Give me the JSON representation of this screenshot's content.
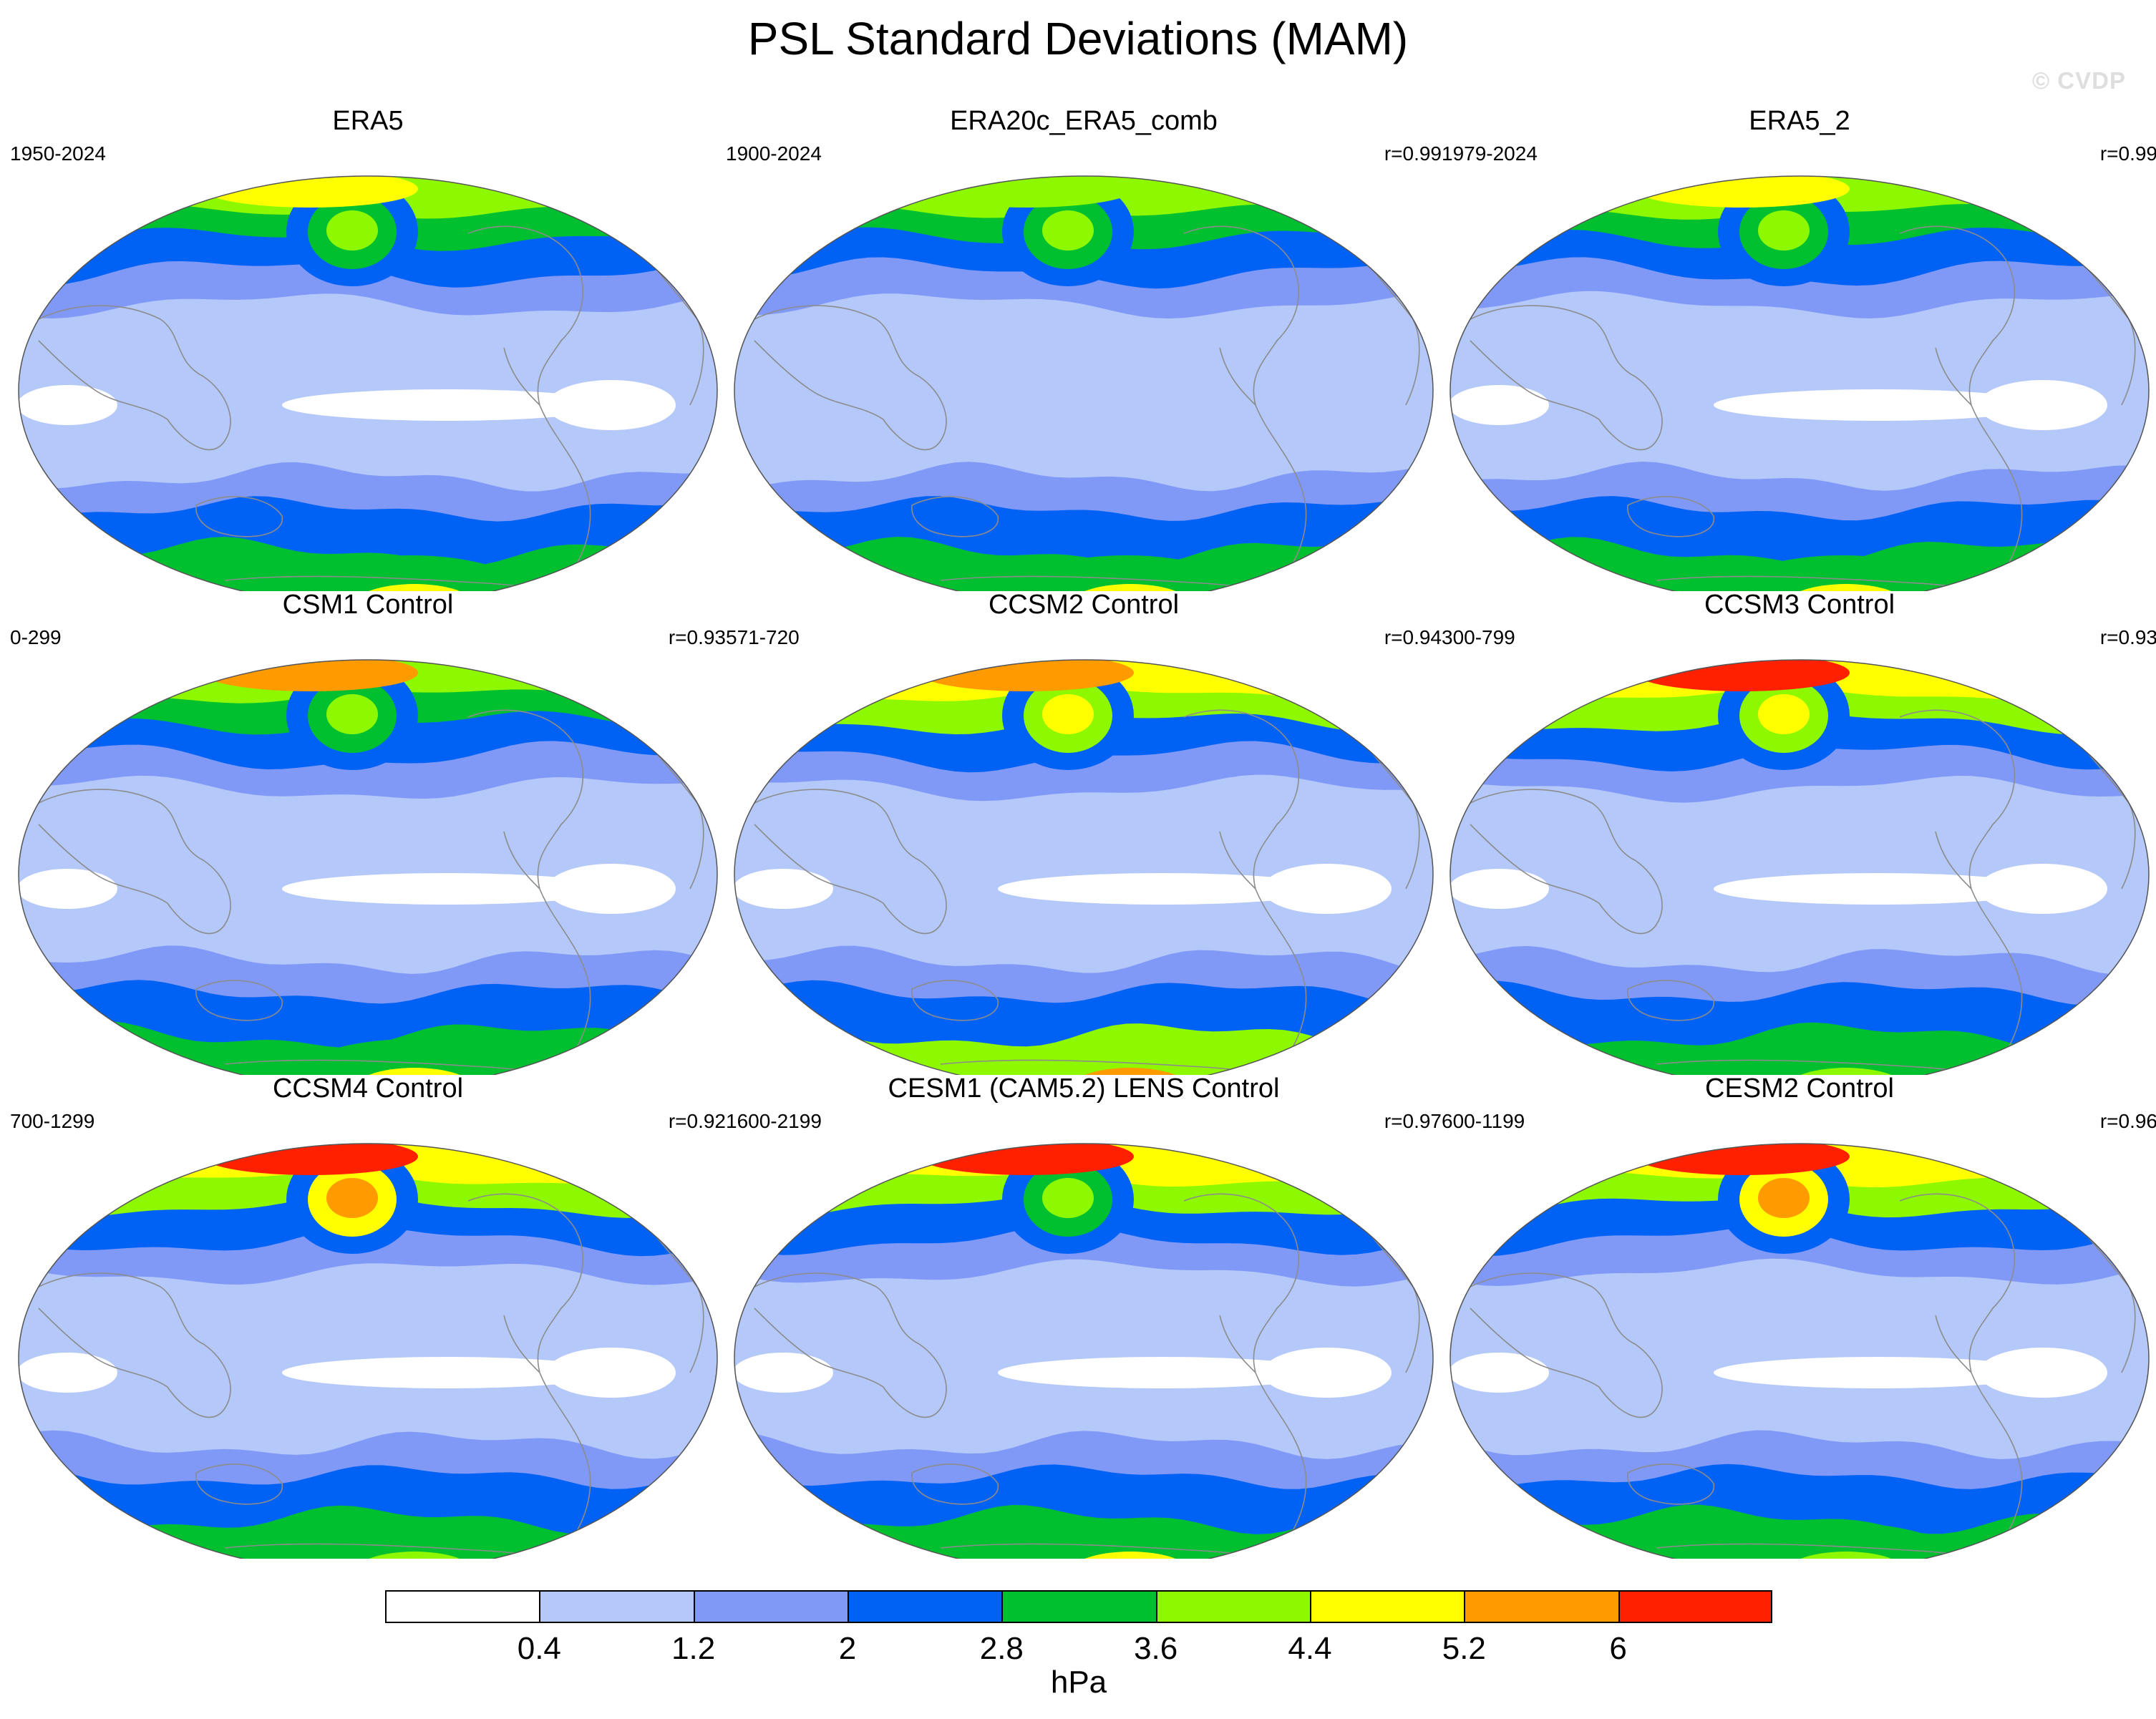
{
  "title": "PSL Standard Deviations (MAM)",
  "watermark": "© CVDP",
  "palette": [
    "#ffffff",
    "#b4c8fa",
    "#8098f6",
    "#0062f4",
    "#00c030",
    "#8ef800",
    "#ffff00",
    "#ff9a00",
    "#ff2000"
  ],
  "coast_color": "#8c8c8c",
  "panels": [
    {
      "title": "ERA5",
      "years": "1950-2024",
      "corr": "",
      "bands": {
        "n_mid": 3,
        "n_mid_lo": 2,
        "n_high": 4,
        "s_mid": 3,
        "s_high": 4,
        "trop_white": 1
      },
      "peaks": {
        "aleutian": 5,
        "arctic": 6,
        "antarctic": 6,
        "s_pacific": 4
      }
    },
    {
      "title": "ERA20c_ERA5_comb",
      "years": "1900-2024",
      "corr": "r=0.99",
      "bands": {
        "n_mid": 3,
        "n_mid_lo": 2,
        "n_high": 4,
        "s_mid": 3,
        "s_high": 4,
        "trop_white": 0
      },
      "peaks": {
        "aleutian": 5,
        "arctic": 5,
        "antarctic": 6,
        "s_pacific": 4
      }
    },
    {
      "title": "ERA5_2",
      "years": "1979-2024",
      "corr": "r=0.99",
      "bands": {
        "n_mid": 3,
        "n_mid_lo": 2,
        "n_high": 4,
        "s_mid": 3,
        "s_high": 4,
        "trop_white": 1
      },
      "peaks": {
        "aleutian": 5,
        "arctic": 6,
        "antarctic": 6,
        "s_pacific": 4
      }
    },
    {
      "title": "CSM1 Control",
      "years": "0-299",
      "corr": "r=0.93",
      "bands": {
        "n_mid": 3,
        "n_mid_lo": 2,
        "n_high": 4,
        "s_mid": 3,
        "s_high": 4,
        "trop_white": 1
      },
      "peaks": {
        "aleutian": 5,
        "arctic": 7,
        "antarctic": 6,
        "s_pacific": 4
      }
    },
    {
      "title": "CCSM2 Control",
      "years": "571-720",
      "corr": "r=0.94",
      "bands": {
        "n_mid": 3,
        "n_mid_lo": 2,
        "n_high": 5,
        "s_mid": 3,
        "s_high": 5,
        "trop_white": 1
      },
      "peaks": {
        "aleutian": 6,
        "arctic": 7,
        "antarctic": 7,
        "s_pacific": 5
      }
    },
    {
      "title": "CCSM3 Control",
      "years": "300-799",
      "corr": "r=0.93",
      "bands": {
        "n_mid": 3,
        "n_mid_lo": 2,
        "n_high": 5,
        "s_mid": 3,
        "s_high": 4,
        "trop_white": 1
      },
      "peaks": {
        "aleutian": 6,
        "arctic": 8,
        "antarctic": 5,
        "s_pacific": 4
      }
    },
    {
      "title": "CCSM4 Control",
      "years": "700-1299",
      "corr": "r=0.92",
      "bands": {
        "n_mid": 3,
        "n_mid_lo": 2,
        "n_high": 5,
        "s_mid": 3,
        "s_high": 4,
        "trop_white": 1
      },
      "peaks": {
        "aleutian": 7,
        "arctic": 8,
        "antarctic": 5,
        "s_pacific": 4
      }
    },
    {
      "title": "CESM1 (CAM5.2) LENS Control",
      "years": "1600-2199",
      "corr": "r=0.97",
      "bands": {
        "n_mid": 3,
        "n_mid_lo": 2,
        "n_high": 5,
        "s_mid": 3,
        "s_high": 4,
        "trop_white": 1
      },
      "peaks": {
        "aleutian": 5,
        "arctic": 8,
        "antarctic": 6,
        "s_pacific": 4
      }
    },
    {
      "title": "CESM2 Control",
      "years": "600-1199",
      "corr": "r=0.96",
      "bands": {
        "n_mid": 3,
        "n_mid_lo": 2,
        "n_high": 5,
        "s_mid": 3,
        "s_high": 4,
        "trop_white": 1
      },
      "peaks": {
        "aleutian": 7,
        "arctic": 8,
        "antarctic": 5,
        "s_pacific": 4
      }
    }
  ],
  "colorbar": {
    "ticks": [
      "0.4",
      "1.2",
      "2",
      "2.8",
      "3.6",
      "4.4",
      "5.2",
      "6"
    ],
    "unit": "hPa"
  }
}
